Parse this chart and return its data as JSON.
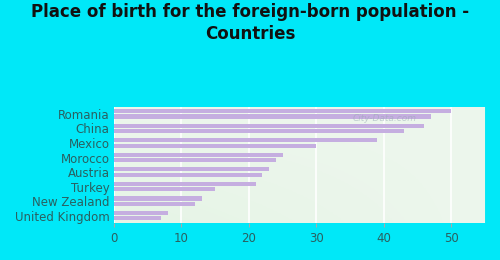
{
  "title": "Place of birth for the foreign-born population -\nCountries",
  "categories": [
    "Romania",
    "China",
    "Mexico",
    "Morocco",
    "Austria",
    "Turkey",
    "New Zealand",
    "United Kingdom"
  ],
  "values1": [
    50,
    46,
    39,
    25,
    23,
    21,
    13,
    8
  ],
  "values2": [
    47,
    43,
    30,
    24,
    22,
    15,
    12,
    7
  ],
  "bar_color": "#c5aee0",
  "bg_color": "#00e8f8",
  "plot_bg": "#f2f8f2",
  "xlim": [
    0,
    55
  ],
  "xticks": [
    0,
    10,
    20,
    30,
    40,
    50
  ],
  "title_fontsize": 12,
  "tick_fontsize": 8.5,
  "label_fontsize": 8.5,
  "bar_height": 0.28,
  "bar_gap": 0.08,
  "watermark": "City-Data.com"
}
